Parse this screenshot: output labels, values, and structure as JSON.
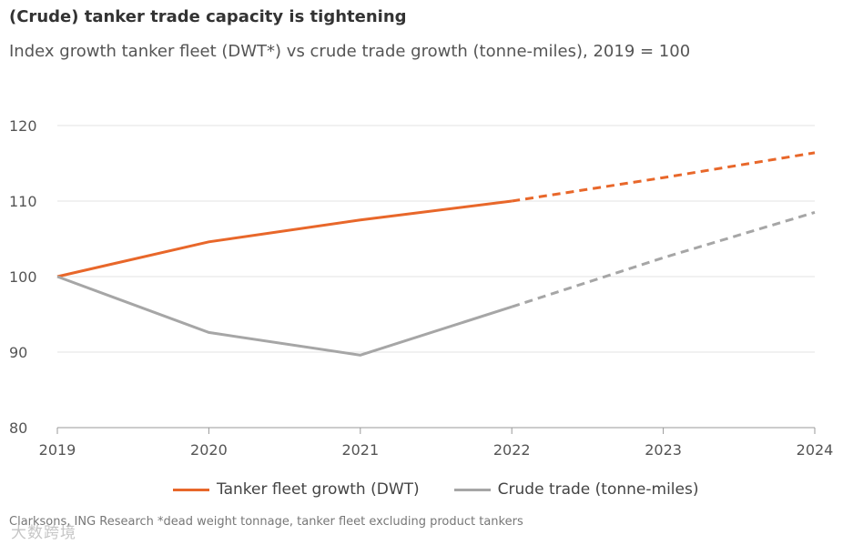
{
  "chart_data": {
    "type": "line",
    "title": "(Crude) tanker trade capacity is tightening",
    "subtitle": "Index growth tanker fleet (DWT*) vs crude trade growth (tonne-miles), 2019 = 100",
    "x": [
      "2019",
      "2020",
      "2021",
      "2022",
      "2023",
      "2024"
    ],
    "ylim": [
      80,
      120
    ],
    "yticks": [
      "80",
      "90",
      "100",
      "110",
      "120"
    ],
    "grid": true,
    "legend_position": "bottom",
    "forecast_from": "2022",
    "series": [
      {
        "name": "Tanker fleet growth (DWT)",
        "color": "#e8672a",
        "values": [
          100,
          104.6,
          107.5,
          110,
          113.1,
          116.4
        ]
      },
      {
        "name": "Crude trade (tonne-miles)",
        "color": "#a6a6a6",
        "values": [
          100,
          92.6,
          89.6,
          96,
          102.5,
          108.5
        ]
      }
    ],
    "source": "Clarksons, ING Research *dead weight tonnage, tanker fleet excluding product tankers"
  },
  "watermark": "大数跨境"
}
